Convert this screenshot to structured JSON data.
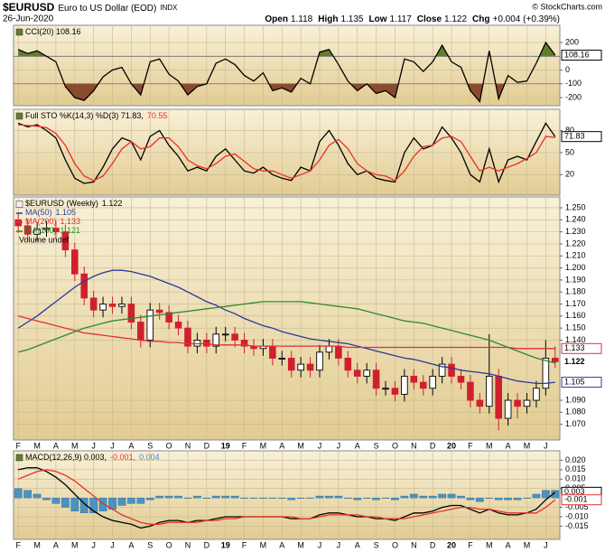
{
  "header": {
    "symbol": "$EURUSD",
    "name": "Euro to US Dollar (EOD)",
    "exchange": "INDX",
    "date": "26-Jun-2020",
    "source": "© StockCharts.com",
    "quote": [
      {
        "label": "Open",
        "value": "1.118"
      },
      {
        "label": "High",
        "value": "1.135"
      },
      {
        "label": "Low",
        "value": "1.117"
      },
      {
        "label": "Close",
        "value": "1.122"
      },
      {
        "label": "Chg",
        "value": "+0.004 (+0.39%)"
      }
    ]
  },
  "chart_data": [
    {
      "type": "line",
      "title": [
        "CCI(20) 108.16"
      ],
      "ylim": [
        -259,
        325
      ],
      "yticks": [
        200,
        0,
        -100,
        -200
      ],
      "grid": true,
      "fill_above": 100,
      "fill_below": -100,
      "fill_above_color": "#5f7f2a",
      "fill_below_color": "#8a4a2e",
      "series": [
        {
          "color": "#000000",
          "end_box": true,
          "values": [
            150,
            120,
            140,
            100,
            60,
            -120,
            -200,
            -220,
            -150,
            -50,
            0,
            20,
            -100,
            -180,
            60,
            80,
            -30,
            -80,
            -180,
            -120,
            -100,
            50,
            80,
            40,
            -40,
            -80,
            -20,
            -150,
            -130,
            -160,
            -60,
            -100,
            130,
            150,
            40,
            -80,
            -150,
            -100,
            -170,
            -150,
            -200,
            80,
            60,
            -10,
            60,
            180,
            60,
            20,
            -150,
            -230,
            140,
            -210,
            -40,
            -90,
            -80,
            50,
            200,
            108.16
          ]
        }
      ]
    },
    {
      "type": "line",
      "title": [
        "Full STO %K(14,3) %D(3) 71.83,",
        "70.55"
      ],
      "ylim": [
        -8,
        109
      ],
      "yticks": [
        80,
        50,
        20
      ],
      "grid": true,
      "series": [
        {
          "color": "#000000",
          "end_box": true,
          "values": [
            90,
            85,
            88,
            80,
            70,
            40,
            15,
            8,
            10,
            30,
            55,
            70,
            65,
            40,
            72,
            80,
            60,
            45,
            25,
            30,
            25,
            45,
            55,
            40,
            25,
            22,
            30,
            20,
            15,
            12,
            30,
            25,
            65,
            80,
            60,
            35,
            20,
            25,
            15,
            12,
            10,
            50,
            70,
            55,
            60,
            85,
            70,
            50,
            20,
            10,
            55,
            10,
            40,
            45,
            40,
            65,
            90,
            71.83
          ]
        },
        {
          "color": "#e8302a",
          "values": [
            88,
            87,
            86,
            84,
            76,
            60,
            35,
            18,
            12,
            18,
            35,
            55,
            65,
            55,
            58,
            70,
            70,
            58,
            40,
            32,
            28,
            35,
            45,
            48,
            38,
            28,
            25,
            25,
            20,
            15,
            20,
            25,
            40,
            60,
            68,
            55,
            35,
            25,
            20,
            18,
            12,
            25,
            45,
            58,
            60,
            70,
            72,
            65,
            45,
            25,
            30,
            25,
            30,
            35,
            42,
            50,
            72,
            70.55
          ]
        }
      ]
    },
    {
      "type": "candlestick",
      "title": "$EURUSD (Weekly)",
      "volume_label": "Volume undef",
      "categories": [
        "F",
        null,
        "M",
        null,
        "A",
        null,
        "M",
        null,
        "J",
        null,
        "J",
        null,
        "A",
        null,
        "S",
        null,
        "O",
        null,
        "N",
        null,
        "D",
        null,
        "19",
        null,
        "F",
        null,
        "M",
        null,
        "A",
        null,
        "M",
        null,
        "J",
        null,
        "J",
        null,
        "A",
        null,
        "S",
        null,
        "O",
        null,
        "N",
        null,
        "D",
        null,
        "20",
        null,
        "F",
        null,
        "M",
        null,
        "A",
        null,
        "M",
        null,
        "J",
        null
      ],
      "open": [
        1.24,
        1.235,
        1.228,
        1.232,
        1.233,
        1.23,
        1.215,
        1.195,
        1.175,
        1.165,
        1.17,
        1.168,
        1.17,
        1.155,
        1.14,
        1.165,
        1.163,
        1.155,
        1.15,
        1.135,
        1.14,
        1.135,
        1.145,
        1.145,
        1.14,
        1.135,
        1.133,
        1.135,
        1.125,
        1.125,
        1.115,
        1.12,
        1.115,
        1.13,
        1.135,
        1.125,
        1.115,
        1.11,
        1.115,
        1.1,
        1.1,
        1.095,
        1.11,
        1.105,
        1.1,
        1.11,
        1.12,
        1.11,
        1.105,
        1.09,
        1.085,
        1.11,
        1.075,
        1.09,
        1.085,
        1.09,
        1.1,
        1.125
      ],
      "high": [
        1.246,
        1.241,
        1.238,
        1.239,
        1.239,
        1.236,
        1.221,
        1.201,
        1.181,
        1.176,
        1.176,
        1.176,
        1.176,
        1.161,
        1.171,
        1.171,
        1.169,
        1.161,
        1.156,
        1.146,
        1.146,
        1.151,
        1.151,
        1.151,
        1.146,
        1.141,
        1.141,
        1.141,
        1.131,
        1.131,
        1.126,
        1.126,
        1.136,
        1.141,
        1.141,
        1.131,
        1.121,
        1.121,
        1.121,
        1.106,
        1.106,
        1.116,
        1.116,
        1.111,
        1.116,
        1.126,
        1.126,
        1.116,
        1.111,
        1.096,
        1.145,
        1.116,
        1.096,
        1.096,
        1.096,
        1.106,
        1.14,
        1.135
      ],
      "low": [
        1.229,
        1.222,
        1.222,
        1.226,
        1.224,
        1.209,
        1.189,
        1.169,
        1.159,
        1.159,
        1.162,
        1.162,
        1.149,
        1.134,
        1.134,
        1.157,
        1.149,
        1.144,
        1.129,
        1.129,
        1.129,
        1.129,
        1.139,
        1.134,
        1.129,
        1.127,
        1.127,
        1.119,
        1.119,
        1.109,
        1.109,
        1.109,
        1.109,
        1.124,
        1.119,
        1.109,
        1.104,
        1.104,
        1.094,
        1.094,
        1.089,
        1.089,
        1.099,
        1.094,
        1.094,
        1.104,
        1.104,
        1.099,
        1.084,
        1.079,
        1.079,
        1.065,
        1.069,
        1.075,
        1.079,
        1.084,
        1.094,
        1.117
      ],
      "close": [
        1.235,
        1.228,
        1.232,
        1.233,
        1.23,
        1.215,
        1.195,
        1.175,
        1.165,
        1.17,
        1.168,
        1.17,
        1.155,
        1.14,
        1.165,
        1.163,
        1.155,
        1.15,
        1.135,
        1.14,
        1.135,
        1.145,
        1.145,
        1.14,
        1.135,
        1.133,
        1.135,
        1.125,
        1.125,
        1.115,
        1.12,
        1.115,
        1.13,
        1.135,
        1.125,
        1.115,
        1.11,
        1.115,
        1.1,
        1.1,
        1.095,
        1.11,
        1.105,
        1.1,
        1.11,
        1.12,
        1.11,
        1.105,
        1.09,
        1.085,
        1.11,
        1.075,
        1.09,
        1.085,
        1.09,
        1.1,
        1.125,
        1.122
      ],
      "up_color": "#000000",
      "down_color": "#d0202e",
      "close_label": true,
      "ylim": [
        1.057,
        1.259
      ],
      "yticks": [
        {
          "value": 1.25,
          "label": "1.250"
        },
        {
          "value": 1.24,
          "label": "1.240"
        },
        {
          "value": 1.23,
          "label": "1.230"
        },
        {
          "value": 1.22,
          "label": "1.220"
        },
        {
          "value": 1.21,
          "label": "1.210"
        },
        {
          "value": 1.2,
          "label": "1.200"
        },
        {
          "value": 1.19,
          "label": "1.190"
        },
        {
          "value": 1.18,
          "label": "1.180"
        },
        {
          "value": 1.17,
          "label": "1.170"
        },
        {
          "value": 1.16,
          "label": "1.160"
        },
        {
          "value": 1.15,
          "label": "1.150"
        },
        {
          "value": 1.14,
          "label": "1.140"
        },
        {
          "value": 1.09,
          "label": "1.090"
        },
        {
          "value": 1.08,
          "label": "1.080"
        },
        {
          "value": 1.07,
          "label": "1.070"
        }
      ],
      "grid": true,
      "series": [
        {
          "name": "MA(50)",
          "color": "#2b3a9c",
          "end_box": true,
          "values": [
            1.15,
            1.155,
            1.16,
            1.166,
            1.172,
            1.178,
            1.184,
            1.189,
            1.193,
            1.196,
            1.198,
            1.198,
            1.197,
            1.195,
            1.193,
            1.19,
            1.187,
            1.184,
            1.18,
            1.176,
            1.172,
            1.169,
            1.165,
            1.162,
            1.158,
            1.155,
            1.152,
            1.15,
            1.147,
            1.145,
            1.143,
            1.141,
            1.14,
            1.139,
            1.138,
            1.137,
            1.135,
            1.133,
            1.131,
            1.129,
            1.127,
            1.125,
            1.124,
            1.122,
            1.12,
            1.118,
            1.117,
            1.115,
            1.114,
            1.113,
            1.112,
            1.11,
            1.108,
            1.106,
            1.105,
            1.104,
            1.104,
            1.105
          ]
        },
        {
          "name": "MA(200)",
          "color": "#e0303a",
          "end_box": true,
          "values": [
            1.16,
            1.158,
            1.156,
            1.154,
            1.152,
            1.15,
            1.148,
            1.146,
            1.145,
            1.144,
            1.143,
            1.142,
            1.141,
            1.14,
            1.139,
            1.139,
            1.138,
            1.138,
            1.137,
            1.137,
            1.137,
            1.136,
            1.136,
            1.136,
            1.136,
            1.135,
            1.135,
            1.135,
            1.135,
            1.135,
            1.135,
            1.135,
            1.135,
            1.135,
            1.135,
            1.134,
            1.134,
            1.134,
            1.134,
            1.134,
            1.134,
            1.134,
            1.134,
            1.134,
            1.134,
            1.134,
            1.134,
            1.134,
            1.134,
            1.134,
            1.134,
            1.134,
            1.134,
            1.133,
            1.133,
            1.133,
            1.133,
            1.133
          ]
        },
        {
          "name": "MA(100)",
          "color": "#2f8a2a",
          "values": [
            1.13,
            1.132,
            1.135,
            1.138,
            1.141,
            1.144,
            1.147,
            1.15,
            1.152,
            1.154,
            1.156,
            1.157,
            1.158,
            1.159,
            1.16,
            1.161,
            1.162,
            1.163,
            1.164,
            1.165,
            1.166,
            1.167,
            1.168,
            1.169,
            1.17,
            1.171,
            1.172,
            1.172,
            1.172,
            1.172,
            1.172,
            1.171,
            1.17,
            1.169,
            1.168,
            1.167,
            1.166,
            1.164,
            1.162,
            1.16,
            1.158,
            1.156,
            1.155,
            1.154,
            1.152,
            1.15,
            1.148,
            1.146,
            1.144,
            1.142,
            1.14,
            1.137,
            1.134,
            1.131,
            1.128,
            1.125,
            1.123,
            1.121
          ]
        }
      ]
    },
    {
      "type": "line",
      "title": [
        "MACD(12,26,9) 0.003,",
        "-0.001,",
        "0.004"
      ],
      "categories": [
        "F",
        null,
        "M",
        null,
        "A",
        null,
        "M",
        null,
        "J",
        null,
        "J",
        null,
        "A",
        null,
        "S",
        null,
        "O",
        null,
        "N",
        null,
        "D",
        null,
        "19",
        null,
        "F",
        null,
        "M",
        null,
        "A",
        null,
        "M",
        null,
        "J",
        null,
        "J",
        null,
        "A",
        null,
        "S",
        null,
        "O",
        null,
        "N",
        null,
        "D",
        null,
        "20",
        null,
        "F",
        null,
        "M",
        null,
        "A",
        null,
        "M",
        null,
        "J",
        null
      ],
      "ylim": [
        -0.022,
        0.025
      ],
      "yticks": [
        {
          "value": 0.02,
          "label": "0.020"
        },
        0.015,
        {
          "value": 0.01,
          "label": "0.010"
        },
        0.005,
        -0.005,
        {
          "value": -0.01,
          "label": "-0.010"
        },
        -0.015
      ],
      "grid": true,
      "series": [
        {
          "color": "#000000",
          "end_box": true,
          "values": [
            0.015,
            0.016,
            0.016,
            0.014,
            0.011,
            0.007,
            0.002,
            -0.003,
            -0.007,
            -0.01,
            -0.012,
            -0.013,
            -0.014,
            -0.016,
            -0.015,
            -0.013,
            -0.012,
            -0.012,
            -0.013,
            -0.012,
            -0.012,
            -0.011,
            -0.01,
            -0.01,
            -0.01,
            -0.01,
            -0.01,
            -0.01,
            -0.01,
            -0.011,
            -0.011,
            -0.011,
            -0.009,
            -0.008,
            -0.008,
            -0.009,
            -0.01,
            -0.01,
            -0.011,
            -0.011,
            -0.012,
            -0.01,
            -0.008,
            -0.008,
            -0.007,
            -0.005,
            -0.004,
            -0.004,
            -0.006,
            -0.008,
            -0.006,
            -0.008,
            -0.009,
            -0.009,
            -0.008,
            -0.006,
            -0.001,
            0.003
          ]
        },
        {
          "color": "#e8302a",
          "end_box": true,
          "values": [
            0.01,
            0.012,
            0.014,
            0.015,
            0.014,
            0.012,
            0.009,
            0.005,
            0.001,
            -0.003,
            -0.006,
            -0.009,
            -0.011,
            -0.013,
            -0.014,
            -0.014,
            -0.013,
            -0.013,
            -0.013,
            -0.013,
            -0.012,
            -0.012,
            -0.011,
            -0.011,
            -0.01,
            -0.01,
            -0.01,
            -0.01,
            -0.01,
            -0.01,
            -0.011,
            -0.011,
            -0.01,
            -0.009,
            -0.009,
            -0.009,
            -0.009,
            -0.01,
            -0.01,
            -0.011,
            -0.011,
            -0.011,
            -0.01,
            -0.009,
            -0.008,
            -0.007,
            -0.006,
            -0.005,
            -0.005,
            -0.006,
            -0.006,
            -0.007,
            -0.008,
            -0.008,
            -0.008,
            -0.008,
            -0.005,
            -0.001
          ]
        },
        {
          "type": "bar",
          "color": "#4a92c2",
          "values": [
            0.005,
            0.004,
            0.002,
            -0.001,
            -0.003,
            -0.005,
            -0.007,
            -0.008,
            -0.008,
            -0.007,
            -0.006,
            -0.004,
            -0.003,
            -0.003,
            -0.001,
            0.001,
            0.001,
            0.001,
            0,
            0.001,
            0,
            0.001,
            0.001,
            0.001,
            0,
            0,
            0,
            0,
            0,
            -0.001,
            0,
            0,
            0.001,
            0.001,
            0.001,
            0,
            -0.001,
            0,
            -0.001,
            0,
            -0.001,
            0.001,
            0.002,
            0.001,
            0.001,
            0.002,
            0.002,
            0.001,
            -0.001,
            -0.002,
            0,
            -0.001,
            -0.001,
            -0.001,
            0,
            0.002,
            0.004,
            0.004
          ]
        }
      ]
    }
  ]
}
